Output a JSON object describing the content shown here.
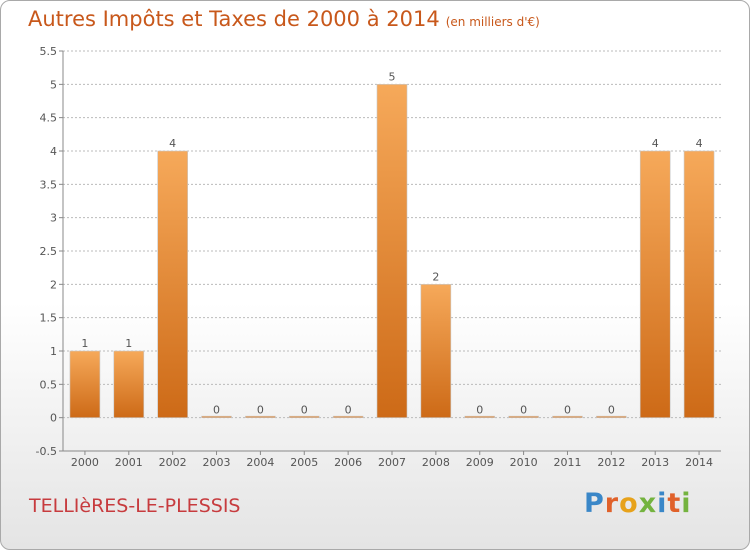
{
  "header": {
    "title": "Autres Impôts et Taxes de 2000 à 2014",
    "unit": "(en milliers d'€)"
  },
  "commune": "TELLIèRES-LE-PLESSIS",
  "logo": {
    "text": "Proxiti",
    "letter_colors": [
      "#3a87c8",
      "#e0612a",
      "#e7a21b",
      "#74b33f",
      "#3a87c8",
      "#e0612a",
      "#74b33f"
    ]
  },
  "colors": {
    "bar_light": "#f6a95a",
    "bar_dark": "#cd6a17",
    "axis_text": "#555555",
    "grid": "#bbbbbb",
    "title": "#c8581b",
    "commune": "#c73b3e"
  },
  "chart_data": {
    "type": "bar",
    "title": "Autres Impôts et Taxes de 2000 à 2014",
    "xlabel": "",
    "ylabel": "",
    "categories": [
      "2000",
      "2001",
      "2002",
      "2003",
      "2004",
      "2005",
      "2006",
      "2007",
      "2008",
      "2009",
      "2010",
      "2011",
      "2012",
      "2013",
      "2014"
    ],
    "values": [
      1,
      1,
      4,
      0,
      0,
      0,
      0,
      5,
      2,
      0,
      0,
      0,
      0,
      4,
      4
    ],
    "data_labels": [
      "1",
      "1",
      "4",
      "0",
      "0",
      "0",
      "0",
      "5",
      "2",
      "0",
      "0",
      "0",
      "0",
      "4",
      "4"
    ],
    "ylim": [
      -0.5,
      5.5
    ],
    "yticks": [
      -0.5,
      0,
      0.5,
      1,
      1.5,
      2,
      2.5,
      3,
      3.5,
      4,
      4.5,
      5,
      5.5
    ],
    "ytick_labels": [
      "-0.5",
      "0",
      "0.5",
      "1",
      "1.5",
      "2",
      "2.5",
      "3",
      "3.5",
      "4",
      "4.5",
      "5",
      "5.5"
    ],
    "grid": "horizontal dashed",
    "legend": "none"
  }
}
